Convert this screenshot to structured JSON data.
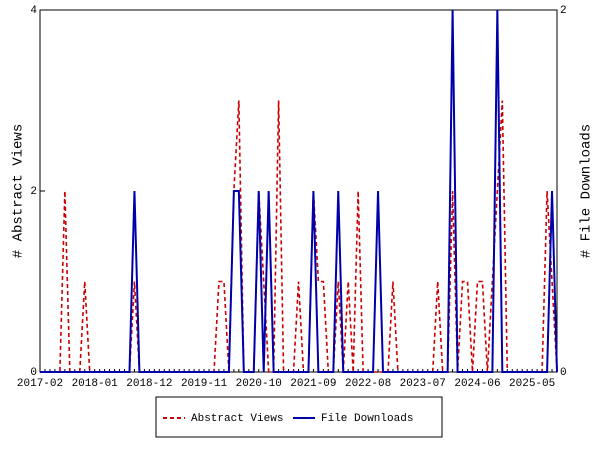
{
  "chart_data": {
    "type": "line",
    "x": [
      "2017-02",
      "2017-03",
      "2017-04",
      "2017-05",
      "2017-06",
      "2017-07",
      "2017-08",
      "2017-09",
      "2017-10",
      "2017-11",
      "2017-12",
      "2018-01",
      "2018-02",
      "2018-03",
      "2018-04",
      "2018-05",
      "2018-06",
      "2018-07",
      "2018-08",
      "2018-09",
      "2018-10",
      "2018-11",
      "2018-12",
      "2019-01",
      "2019-02",
      "2019-03",
      "2019-04",
      "2019-05",
      "2019-06",
      "2019-07",
      "2019-08",
      "2019-09",
      "2019-10",
      "2019-11",
      "2019-12",
      "2020-01",
      "2020-02",
      "2020-03",
      "2020-04",
      "2020-05",
      "2020-06",
      "2020-07",
      "2020-08",
      "2020-09",
      "2020-10",
      "2020-11",
      "2020-12",
      "2021-01",
      "2021-02",
      "2021-03",
      "2021-04",
      "2021-05",
      "2021-06",
      "2021-07",
      "2021-08",
      "2021-09",
      "2021-10",
      "2021-11",
      "2021-12",
      "2022-01",
      "2022-02",
      "2022-03",
      "2022-04",
      "2022-05",
      "2022-06",
      "2022-07",
      "2022-08",
      "2022-09",
      "2022-10",
      "2022-11",
      "2022-12",
      "2023-01",
      "2023-02",
      "2023-03",
      "2023-04",
      "2023-05",
      "2023-06",
      "2023-07",
      "2023-08",
      "2023-09",
      "2023-10",
      "2023-11",
      "2023-12",
      "2024-01",
      "2024-02",
      "2024-03",
      "2024-04",
      "2024-05",
      "2024-06",
      "2024-07",
      "2024-08",
      "2024-09",
      "2024-10",
      "2024-11",
      "2024-12",
      "2025-01",
      "2025-02",
      "2025-03",
      "2025-04",
      "2025-05",
      "2025-06",
      "2025-07",
      "2025-08",
      "2025-09",
      "2025-10"
    ],
    "series": [
      {
        "name": "Abstract Views",
        "color": "#cc0000",
        "dash": true,
        "values": [
          0,
          0,
          0,
          0,
          0,
          2,
          0,
          0,
          0,
          1,
          0,
          0,
          0,
          0,
          0,
          0,
          0,
          0,
          0,
          1,
          0,
          0,
          0,
          0,
          0,
          0,
          0,
          0,
          0,
          0,
          0,
          0,
          0,
          0,
          0,
          0,
          1,
          1,
          0,
          2,
          3,
          0,
          0,
          0,
          2,
          1,
          0,
          0,
          3,
          0,
          0,
          0,
          1,
          0,
          0,
          2,
          1,
          1,
          0,
          0,
          1,
          0,
          1,
          0,
          2,
          0,
          0,
          0,
          0,
          0,
          0,
          1,
          0,
          0,
          0,
          0,
          0,
          0,
          0,
          0,
          1,
          0,
          0,
          2,
          0,
          1,
          1,
          0,
          1,
          1,
          0,
          1,
          2,
          3,
          0,
          0,
          0,
          0,
          0,
          0,
          0,
          0,
          2,
          1,
          0
        ]
      },
      {
        "name": "File Downloads",
        "color": "#0000aa",
        "axis": "y2",
        "values": [
          0,
          0,
          0,
          0,
          0,
          0,
          0,
          0,
          0,
          0,
          0,
          0,
          0,
          0,
          0,
          0,
          0,
          0,
          0,
          1,
          0,
          0,
          0,
          0,
          0,
          0,
          0,
          0,
          0,
          0,
          0,
          0,
          0,
          0,
          0,
          0,
          0,
          0,
          0,
          1,
          1,
          0,
          0,
          0,
          1,
          0,
          1,
          0,
          0,
          0,
          0,
          0,
          0,
          0,
          0,
          1,
          0,
          0,
          0,
          0,
          1,
          0,
          0,
          0,
          0,
          0,
          0,
          0,
          1,
          0,
          0,
          0,
          0,
          0,
          0,
          0,
          0,
          0,
          0,
          0,
          0,
          0,
          0,
          2,
          0,
          0,
          0,
          0,
          0,
          0,
          0,
          0,
          2,
          0,
          0,
          0,
          0,
          0,
          0,
          0,
          0,
          0,
          0,
          1,
          0
        ]
      }
    ],
    "ylabel": "# Abstract Views",
    "y2label": "# File Downloads",
    "ylim": [
      0,
      4
    ],
    "yticks": [
      0,
      2,
      4
    ],
    "y2lim": [
      0,
      2
    ],
    "y2ticks": [
      0,
      2
    ]
  }
}
